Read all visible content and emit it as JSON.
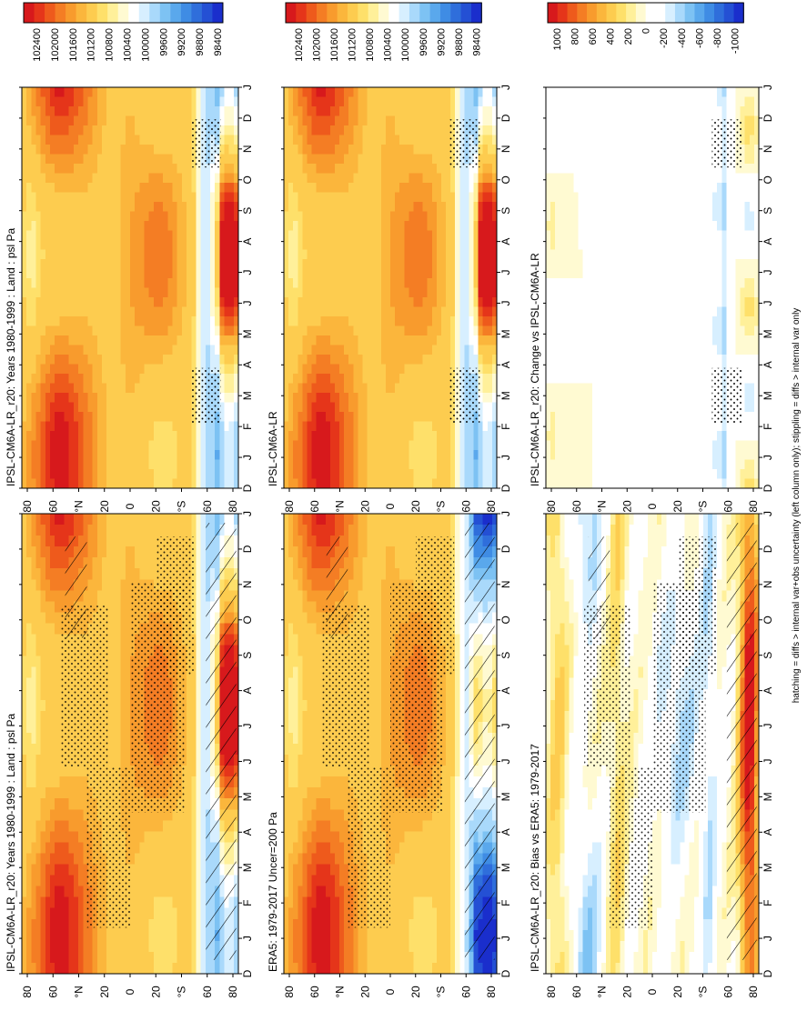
{
  "figure": {
    "footer": "hatching = diffs > internal var+obs uncertainty (left column only); stippling = diffs > internal var only"
  },
  "palettes": {
    "abs": [
      "#d7191c",
      "#e5351a",
      "#ee5a1c",
      "#f47d24",
      "#f89b2d",
      "#fbb63c",
      "#fdcc4f",
      "#fee06a",
      "#fff09a",
      "#fffad2",
      "#ffffff",
      "#d7efff",
      "#a9d9fb",
      "#7dc2f3",
      "#5aa8ec",
      "#3f8ce4",
      "#2f6edb",
      "#2450d4",
      "#1a2ecc"
    ],
    "diff": [
      "#d7191c",
      "#e5351a",
      "#ee5a1c",
      "#f47d24",
      "#f89b2d",
      "#fbb63c",
      "#fdcc4f",
      "#fee06a",
      "#fff09a",
      "#fffad2",
      "#ffffff",
      "#ffffff",
      "#d7efff",
      "#a9d9fb",
      "#7dc2f3",
      "#5aa8ec",
      "#3f8ce4",
      "#2f6edb",
      "#2450d4",
      "#1a2ecc"
    ]
  },
  "chart_data": [
    {
      "type": "heatmap",
      "title": "IPSL-CM6A-LR_r20: Years 1980-1999 : Land : psl Pa",
      "x_categories": [
        "D",
        "J",
        "F",
        "M",
        "A",
        "M",
        "J",
        "J",
        "A",
        "S",
        "O",
        "N",
        "D",
        "J"
      ],
      "y_tick_labels": [
        "80",
        "60",
        "°N",
        "20",
        "0",
        "20",
        "°S",
        "60",
        "80"
      ],
      "colorbar_ticks": [
        "102400",
        "102000",
        "101600",
        "101200",
        "100800",
        "100400",
        "100000",
        "99600",
        "99200",
        "98800",
        "98400"
      ],
      "palette": "abs",
      "model": "abs1",
      "hatch": true,
      "stipple": 1
    },
    {
      "type": "heatmap",
      "title": "IPSL-CM6A-LR_r20: Years 1980-1999 : Land : psl Pa",
      "x_categories": [
        "D",
        "J",
        "F",
        "M",
        "A",
        "M",
        "J",
        "J",
        "A",
        "S",
        "O",
        "N",
        "D",
        "J"
      ],
      "y_tick_labels": [
        "80",
        "60",
        "°N",
        "20",
        "0",
        "20",
        "°S",
        "60",
        "80"
      ],
      "colorbar_ticks": [
        "102400",
        "102000",
        "101600",
        "101200",
        "100800",
        "100400",
        "100000",
        "99600",
        "99200",
        "98800",
        "98400"
      ],
      "palette": "abs",
      "model": "abs1",
      "hatch": false,
      "stipple": 0.15
    },
    {
      "type": "heatmap",
      "title": "ERA5: 1979-2017 Uncer=200 Pa",
      "x_categories": [
        "D",
        "J",
        "F",
        "M",
        "A",
        "M",
        "J",
        "J",
        "A",
        "S",
        "O",
        "N",
        "D",
        "J"
      ],
      "y_tick_labels": [
        "80",
        "60",
        "°N",
        "20",
        "0",
        "20",
        "°S",
        "60",
        "80"
      ],
      "colorbar_ticks": [
        "102400",
        "102000",
        "101600",
        "101200",
        "100800",
        "100400",
        "100000",
        "99600",
        "99200",
        "98800",
        "98400"
      ],
      "palette": "abs",
      "model": "abs2",
      "hatch": true,
      "stipple": 1
    },
    {
      "type": "heatmap",
      "title": "IPSL-CM6A-LR",
      "x_categories": [
        "D",
        "J",
        "F",
        "M",
        "A",
        "M",
        "J",
        "J",
        "A",
        "S",
        "O",
        "N",
        "D",
        "J"
      ],
      "y_tick_labels": [
        "80",
        "60",
        "°N",
        "20",
        "0",
        "20",
        "°S",
        "60",
        "80"
      ],
      "colorbar_ticks": [
        "102400",
        "102000",
        "101600",
        "101200",
        "100800",
        "100400",
        "100000",
        "99600",
        "99200",
        "98800",
        "98400"
      ],
      "palette": "abs",
      "model": "abs1",
      "hatch": false,
      "stipple": 0.15
    },
    {
      "type": "heatmap",
      "title": "IPSL-CM6A-LR_r20: Bias vs ERA5: 1979-2017",
      "x_categories": [
        "D",
        "J",
        "F",
        "M",
        "A",
        "M",
        "J",
        "J",
        "A",
        "S",
        "O",
        "N",
        "D",
        "J"
      ],
      "y_tick_labels": [
        "80",
        "60",
        "°N",
        "20",
        "0",
        "20",
        "°S",
        "60",
        "80"
      ],
      "colorbar_ticks": [
        "1000",
        "800",
        "600",
        "400",
        "200",
        "0",
        "-200",
        "-400",
        "-600",
        "-800",
        "-1000"
      ],
      "palette": "diff",
      "model": "bias",
      "hatch": true,
      "stipple": 1
    },
    {
      "type": "heatmap",
      "title": "IPSL-CM6A-LR_r20: Change vs IPSL-CM6A-LR",
      "x_categories": [
        "D",
        "J",
        "F",
        "M",
        "A",
        "M",
        "J",
        "J",
        "A",
        "S",
        "O",
        "N",
        "D",
        "J"
      ],
      "y_tick_labels": [
        "80",
        "60",
        "°N",
        "20",
        "0",
        "20",
        "°S",
        "60",
        "80"
      ],
      "colorbar_ticks": [
        "1000",
        "800",
        "600",
        "400",
        "200",
        "0",
        "-200",
        "-400",
        "-600",
        "-800",
        "-1000"
      ],
      "palette": "diff",
      "model": "change",
      "hatch": false,
      "stipple": 0.35
    }
  ]
}
